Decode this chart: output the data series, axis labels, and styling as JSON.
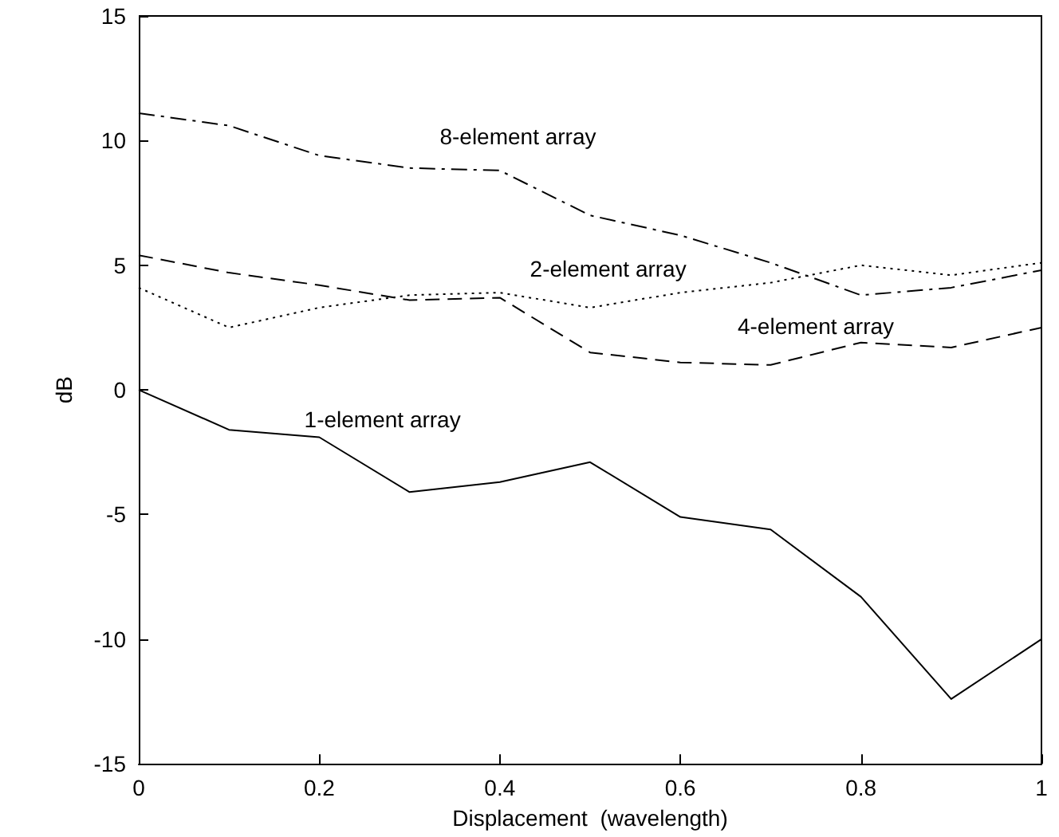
{
  "chart_data": {
    "type": "line",
    "xlabel": "Displacement  (wavelength)",
    "ylabel": "dB",
    "x": [
      0,
      0.1,
      0.2,
      0.3,
      0.4,
      0.5,
      0.6,
      0.7,
      0.8,
      0.9,
      1
    ],
    "series": [
      {
        "name": "1-element array",
        "color": "#000000",
        "line_style": "solid",
        "values": [
          0,
          -1.6,
          -1.9,
          -4.1,
          -3.7,
          -2.9,
          -5.1,
          -5.6,
          -8.3,
          -12.4,
          -10
        ]
      },
      {
        "name": "2-element array",
        "color": "#000000",
        "line_style": "dotted",
        "values": [
          4.1,
          2.5,
          3.3,
          3.8,
          3.9,
          3.3,
          3.9,
          4.3,
          5.0,
          4.6,
          5.1
        ]
      },
      {
        "name": "4-element array",
        "color": "#000000",
        "line_style": "dashed",
        "values": [
          5.4,
          4.7,
          4.2,
          3.6,
          3.7,
          1.5,
          1.1,
          1.0,
          1.9,
          1.7,
          2.5
        ]
      },
      {
        "name": "8-element array",
        "color": "#000000",
        "line_style": "dashdot",
        "values": [
          11.1,
          10.6,
          9.4,
          8.9,
          8.8,
          7.0,
          6.2,
          5.1,
          3.8,
          4.1,
          4.8
        ]
      }
    ],
    "xlim": [
      0,
      1
    ],
    "xticks": [
      0,
      0.2,
      0.4,
      0.6,
      0.8,
      1
    ],
    "ylim": [
      -15,
      15
    ],
    "yticks": [
      -15,
      -10,
      -5,
      0,
      5,
      10,
      15
    ],
    "grid": false,
    "marker": "none"
  }
}
